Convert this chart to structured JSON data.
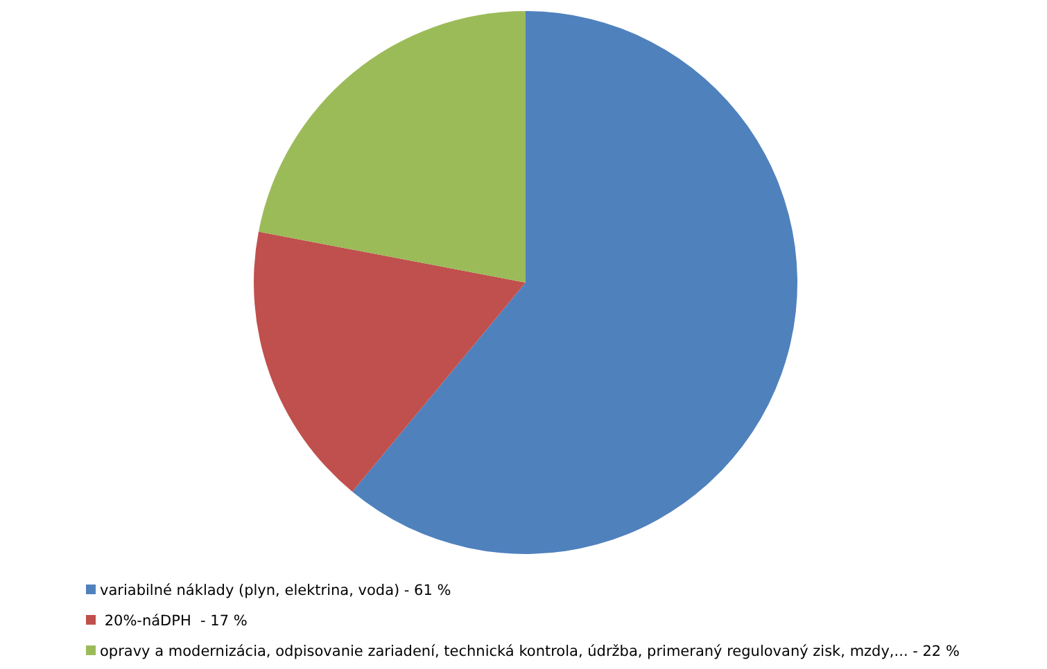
{
  "chart_data": {
    "type": "pie",
    "categories": [
      "variabilné náklady (plyn, elektrina, voda) - 61 %",
      " 20%-náDPH  - 17 %",
      "opravy a modernizácia, odpisovanie zariadení, technická kontrola, údržba, primeraný regulovaný zisk, mzdy,... - 22 %"
    ],
    "values": [
      61,
      17,
      22
    ],
    "colors": [
      "#4f81bd",
      "#c0504d",
      "#9bbb59"
    ],
    "legend": "bottom left"
  }
}
